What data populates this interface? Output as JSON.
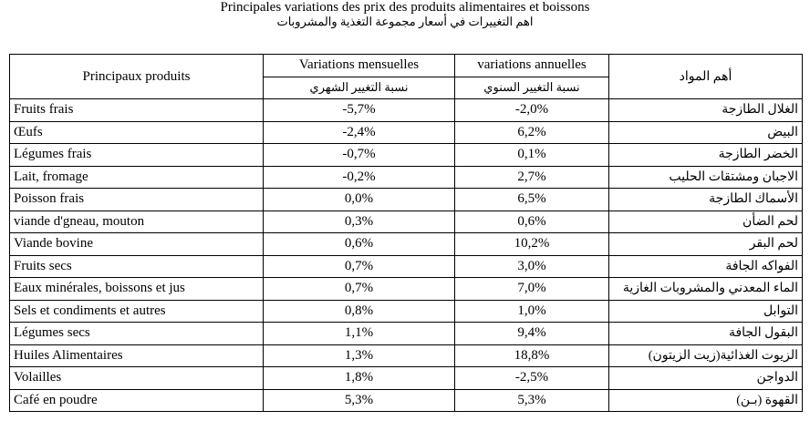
{
  "title_fr": "Principales variations des prix des produits alimentaires et boissons",
  "title_ar": "اهم التغييرات في أسعار مجموعة التغذية والمشروبات",
  "headers": {
    "product_fr": "Principaux produits",
    "monthly_fr": "Variations mensuelles",
    "monthly_ar": "نسبة التغيير الشهري",
    "annual_fr": "variations annuelles",
    "annual_ar": "نسبة التغيير السنوي",
    "product_ar": "أهم المواد"
  },
  "rows": [
    {
      "fr": "Fruits frais",
      "monthly": "-5,7%",
      "annual": "-2,0%",
      "ar": "الغلال الطازجة"
    },
    {
      "fr": "Œufs",
      "monthly": "-2,4%",
      "annual": "6,2%",
      "ar": "البيض"
    },
    {
      "fr": "Légumes frais",
      "monthly": "-0,7%",
      "annual": "0,1%",
      "ar": "الخضر الطازجة"
    },
    {
      "fr": "Lait, fromage",
      "monthly": "-0,2%",
      "annual": "2,7%",
      "ar": "الاجبان ومشتقات الحليب"
    },
    {
      "fr": "Poisson frais",
      "monthly": "0,0%",
      "annual": "6,5%",
      "ar": "الأسماك الطازجة"
    },
    {
      "fr": "viande d'gneau, mouton",
      "monthly": "0,3%",
      "annual": "0,6%",
      "ar": "لحم الضأن"
    },
    {
      "fr": "Viande bovine",
      "monthly": "0,6%",
      "annual": "10,2%",
      "ar": "لحم البقر"
    },
    {
      "fr": "Fruits secs",
      "monthly": "0,7%",
      "annual": "3,0%",
      "ar": "الفواكه الجافة"
    },
    {
      "fr": "Eaux minérales, boissons et jus",
      "monthly": "0,7%",
      "annual": "7,0%",
      "ar": "الماء المعدني والمشروبات الغازية"
    },
    {
      "fr": "Sels et condiments et autres",
      "monthly": "0,8%",
      "annual": "1,0%",
      "ar": "التوابل"
    },
    {
      "fr": "Légumes secs",
      "monthly": "1,1%",
      "annual": "9,4%",
      "ar": "البقول الجافة"
    },
    {
      "fr": "Huiles Alimentaires",
      "monthly": "1,3%",
      "annual": "18,8%",
      "ar": "الزيوت الغذائية(زيت الزيتون)"
    },
    {
      "fr": "Volailles",
      "monthly": "1,8%",
      "annual": "-2,5%",
      "ar": "الدواجن"
    },
    {
      "fr": "Café en poudre",
      "monthly": "5,3%",
      "annual": "5,3%",
      "ar": "القهوة (بـن)"
    }
  ]
}
